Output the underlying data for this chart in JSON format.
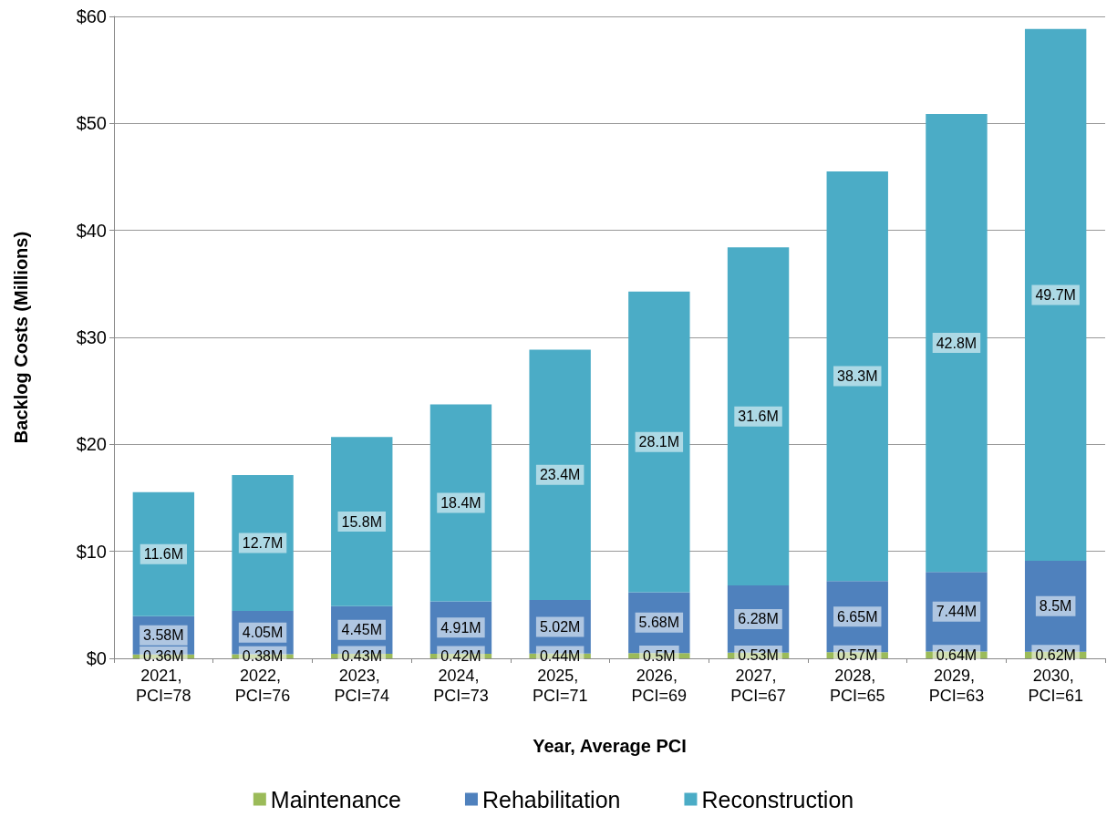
{
  "chart_data": {
    "type": "bar",
    "stacked": true,
    "xlabel": "Year, Average PCI",
    "ylabel": "Backlog Costs (Millions)",
    "categories": [
      "2021, PCI=78",
      "2022, PCI=76",
      "2023, PCI=74",
      "2024, PCI=73",
      "2025, PCI=71",
      "2026, PCI=69",
      "2027, PCI=67",
      "2028, PCI=65",
      "2029, PCI=63",
      "2030, PCI=61"
    ],
    "series": [
      {
        "name": "Maintenance",
        "color": "#9bbb59",
        "values": [
          0.36,
          0.38,
          0.43,
          0.42,
          0.44,
          0.5,
          0.53,
          0.57,
          0.64,
          0.62
        ],
        "value_labels": [
          "0.36M",
          "0.38M",
          "0.43M",
          "0.42M",
          "0.44M",
          "0.5M",
          "0.53M",
          "0.57M",
          "0.64M",
          "0.62M"
        ]
      },
      {
        "name": "Rehabilitation",
        "color": "#4f81bd",
        "values": [
          3.58,
          4.05,
          4.45,
          4.91,
          5.02,
          5.68,
          6.28,
          6.65,
          7.44,
          8.5
        ],
        "value_labels": [
          "3.58M",
          "4.05M",
          "4.45M",
          "4.91M",
          "5.02M",
          "5.68M",
          "6.28M",
          "6.65M",
          "7.44M",
          "8.5M"
        ]
      },
      {
        "name": "Reconstruction",
        "color": "#4bacc6",
        "values": [
          11.6,
          12.7,
          15.8,
          18.4,
          23.4,
          28.1,
          31.6,
          38.3,
          42.8,
          49.7
        ],
        "value_labels": [
          "11.6M",
          "12.7M",
          "15.8M",
          "18.4M",
          "23.4M",
          "28.1M",
          "31.6M",
          "38.3M",
          "42.8M",
          "49.7M"
        ]
      }
    ],
    "ylim": [
      0,
      60
    ],
    "yticks": [
      {
        "value": 0,
        "label": "$0"
      },
      {
        "value": 10,
        "label": "$10"
      },
      {
        "value": 20,
        "label": "$20"
      },
      {
        "value": 30,
        "label": "$30"
      },
      {
        "value": 40,
        "label": "$40"
      },
      {
        "value": 50,
        "label": "$50"
      },
      {
        "value": 60,
        "label": "$60"
      }
    ],
    "grid": "y",
    "legend": "bottom"
  }
}
